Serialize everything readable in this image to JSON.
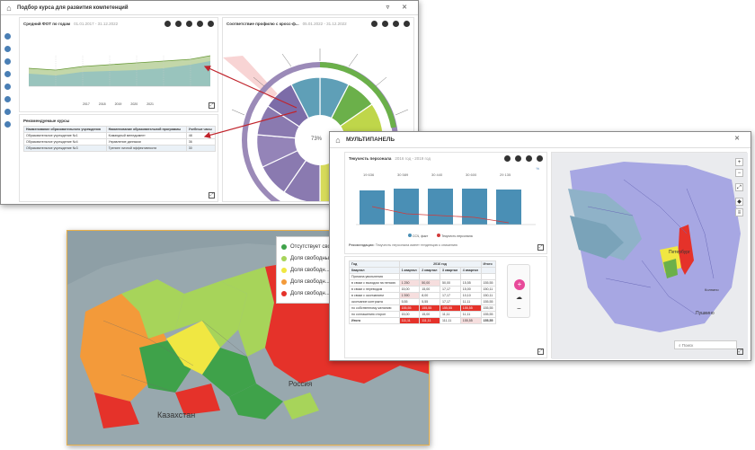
{
  "win1": {
    "title": "Подбор курса для развития компетенций",
    "panel_fot": {
      "title": "Средний ФОТ по годам",
      "subtitle": "01.01.2017 - 31.12.2022",
      "legend": [
        "2017",
        "2018",
        "2019",
        "2020",
        "2021"
      ]
    },
    "panel_radial": {
      "title": "Соответствие профилю с кросс-ф...",
      "subtitle": "05.01.2022 - 31.12.2022",
      "center": "73%"
    },
    "panel_table": {
      "title": "Рекомендуемые курсы",
      "columns": [
        "Наименование образовательного учреждения",
        "Наименование образовательной программы",
        "Учебные часы"
      ],
      "rows": [
        [
          "Образовательное учреждение №1",
          "Командный менеджмент",
          "48"
        ],
        [
          "Образовательное учреждение №4",
          "Управление данными",
          "36"
        ],
        [
          "Образовательное учреждение №3",
          "Тренинг личной эффективности",
          "30"
        ]
      ]
    }
  },
  "map_russia": {
    "legend": [
      "Отсутствует своб...",
      "Доля свободных...",
      "Доля свободн...",
      "Доля свободн...",
      "Доля свободн..."
    ],
    "legend_colors": [
      "#3fa24a",
      "#a7d45a",
      "#f0e742",
      "#f39a3a",
      "#e5322a"
    ],
    "labels": {
      "russia": "Россия",
      "kazakhstan": "Казахстан"
    }
  },
  "win2": {
    "title": "МУЛЬТИПАНЕЛЬ",
    "bar_panel": {
      "title": "Текучесть персонала",
      "subtitle": "2016 год - 2019 год",
      "link": "%",
      "top_values": [
        "19 636",
        "30 589",
        "30 440",
        "30 600",
        "29 135"
      ],
      "legend": [
        "ССЧ, факт",
        "Текучесть персонала"
      ],
      "note_label": "Рекомендации:",
      "note": "Текучесть персонала имеет тенденцию к снижению"
    },
    "table_panel": {
      "header": [
        "Год",
        "2016 год",
        "Итого"
      ],
      "quarter_label": "Квартал",
      "quarters": [
        "1 квартал",
        "2 квартал",
        "3 квартал",
        "4 квартал"
      ],
      "rows": [
        {
          "label": "Причина увольнения",
          "values": [
            "",
            "",
            "",
            "",
            ""
          ]
        },
        {
          "label": "в связи с выходом на пенсию",
          "values": [
            "1 250",
            "50,00",
            "50,00",
            "15,55",
            "155,55"
          ]
        },
        {
          "label": "в связи с переводом",
          "values": [
            "15,00",
            "15,00",
            "17,17",
            "15,00",
            "150,11"
          ]
        },
        {
          "label": "в связи с окончанием",
          "values": [
            "1 590",
            "8,00",
            "17,17",
            "10,10",
            "150,11"
          ]
        },
        {
          "label": "окончание контракта",
          "values": [
            "5,55",
            "5,55",
            "17,17",
            "11,11",
            "155,55"
          ]
        },
        {
          "label": "по собственному желанию",
          "values": [
            "155,55",
            "155,55",
            "155,55",
            "155,55",
            "155,55"
          ]
        },
        {
          "label": "по соглашению сторон",
          "values": [
            "15,00",
            "15,00",
            "11,11",
            "11,11",
            "155,55"
          ]
        },
        {
          "label": "Итого",
          "values": [
            "111,11",
            "111,11",
            "111,11",
            "155,55",
            "155,55"
          ]
        }
      ]
    },
    "map_panel": {
      "search_placeholder": "Поиск",
      "labels": [
        "Петербург",
        "Пушкино",
        "Колпино"
      ]
    }
  }
}
